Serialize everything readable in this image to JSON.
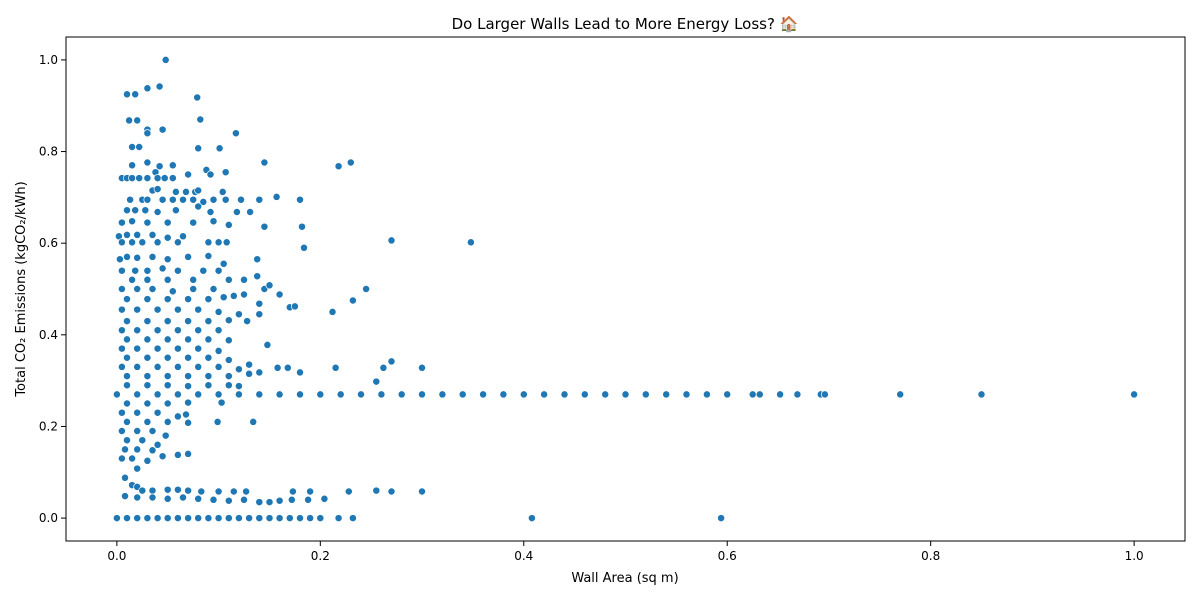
{
  "chart_data": {
    "type": "scatter",
    "title": "Do Larger Walls Lead to More Energy Loss? 🏠",
    "xlabel": "Wall Area (sq m)",
    "ylabel": "Total CO₂ Emissions (kgCO₂/kWh)",
    "xlim": [
      -0.05,
      1.05
    ],
    "ylim": [
      -0.05,
      1.05
    ],
    "x_ticks": [
      "0.0",
      "0.2",
      "0.4",
      "0.6",
      "0.8",
      "1.0"
    ],
    "y_ticks": [
      "0.0",
      "0.2",
      "0.4",
      "0.6",
      "0.8",
      "1.0"
    ],
    "grid": false,
    "marker_color": "#1f77b4",
    "marker_edge": "#ffffff",
    "points": [
      [
        0.048,
        1.0
      ],
      [
        0.01,
        0.925
      ],
      [
        0.018,
        0.925
      ],
      [
        0.03,
        0.938
      ],
      [
        0.042,
        0.942
      ],
      [
        0.079,
        0.918
      ],
      [
        0.012,
        0.868
      ],
      [
        0.02,
        0.868
      ],
      [
        0.082,
        0.87
      ],
      [
        0.03,
        0.848
      ],
      [
        0.045,
        0.848
      ],
      [
        0.03,
        0.84
      ],
      [
        0.117,
        0.84
      ],
      [
        0.015,
        0.81
      ],
      [
        0.022,
        0.81
      ],
      [
        0.08,
        0.807
      ],
      [
        0.101,
        0.807
      ],
      [
        0.03,
        0.776
      ],
      [
        0.055,
        0.77
      ],
      [
        0.015,
        0.77
      ],
      [
        0.042,
        0.768
      ],
      [
        0.145,
        0.776
      ],
      [
        0.218,
        0.768
      ],
      [
        0.23,
        0.776
      ],
      [
        0.088,
        0.76
      ],
      [
        0.092,
        0.75
      ],
      [
        0.107,
        0.755
      ],
      [
        0.07,
        0.75
      ],
      [
        0.038,
        0.755
      ],
      [
        0.005,
        0.742
      ],
      [
        0.01,
        0.742
      ],
      [
        0.015,
        0.742
      ],
      [
        0.022,
        0.742
      ],
      [
        0.03,
        0.742
      ],
      [
        0.04,
        0.742
      ],
      [
        0.047,
        0.742
      ],
      [
        0.055,
        0.742
      ],
      [
        0.035,
        0.715
      ],
      [
        0.04,
        0.718
      ],
      [
        0.058,
        0.712
      ],
      [
        0.068,
        0.712
      ],
      [
        0.077,
        0.712
      ],
      [
        0.08,
        0.715
      ],
      [
        0.104,
        0.712
      ],
      [
        0.013,
        0.695
      ],
      [
        0.025,
        0.695
      ],
      [
        0.03,
        0.695
      ],
      [
        0.045,
        0.695
      ],
      [
        0.055,
        0.695
      ],
      [
        0.065,
        0.695
      ],
      [
        0.075,
        0.695
      ],
      [
        0.085,
        0.69
      ],
      [
        0.095,
        0.695
      ],
      [
        0.107,
        0.695
      ],
      [
        0.122,
        0.695
      ],
      [
        0.14,
        0.695
      ],
      [
        0.18,
        0.695
      ],
      [
        0.157,
        0.701
      ],
      [
        0.01,
        0.672
      ],
      [
        0.018,
        0.672
      ],
      [
        0.028,
        0.672
      ],
      [
        0.04,
        0.668
      ],
      [
        0.058,
        0.672
      ],
      [
        0.08,
        0.68
      ],
      [
        0.092,
        0.668
      ],
      [
        0.118,
        0.668
      ],
      [
        0.131,
        0.668
      ],
      [
        0.005,
        0.645
      ],
      [
        0.015,
        0.648
      ],
      [
        0.03,
        0.645
      ],
      [
        0.05,
        0.645
      ],
      [
        0.075,
        0.645
      ],
      [
        0.095,
        0.648
      ],
      [
        0.11,
        0.64
      ],
      [
        0.145,
        0.636
      ],
      [
        0.182,
        0.636
      ],
      [
        0.002,
        0.615
      ],
      [
        0.01,
        0.618
      ],
      [
        0.02,
        0.618
      ],
      [
        0.035,
        0.618
      ],
      [
        0.05,
        0.612
      ],
      [
        0.065,
        0.615
      ],
      [
        0.005,
        0.602
      ],
      [
        0.015,
        0.602
      ],
      [
        0.025,
        0.602
      ],
      [
        0.04,
        0.602
      ],
      [
        0.06,
        0.602
      ],
      [
        0.09,
        0.602
      ],
      [
        0.1,
        0.602
      ],
      [
        0.108,
        0.602
      ],
      [
        0.184,
        0.59
      ],
      [
        0.27,
        0.606
      ],
      [
        0.348,
        0.602
      ],
      [
        0.003,
        0.565
      ],
      [
        0.01,
        0.57
      ],
      [
        0.02,
        0.568
      ],
      [
        0.035,
        0.57
      ],
      [
        0.05,
        0.565
      ],
      [
        0.07,
        0.57
      ],
      [
        0.09,
        0.572
      ],
      [
        0.105,
        0.555
      ],
      [
        0.138,
        0.565
      ],
      [
        0.005,
        0.54
      ],
      [
        0.018,
        0.54
      ],
      [
        0.03,
        0.54
      ],
      [
        0.045,
        0.545
      ],
      [
        0.06,
        0.54
      ],
      [
        0.085,
        0.54
      ],
      [
        0.1,
        0.54
      ],
      [
        0.125,
        0.52
      ],
      [
        0.138,
        0.528
      ],
      [
        0.015,
        0.52
      ],
      [
        0.03,
        0.52
      ],
      [
        0.05,
        0.52
      ],
      [
        0.075,
        0.52
      ],
      [
        0.11,
        0.52
      ],
      [
        0.145,
        0.5
      ],
      [
        0.15,
        0.508
      ],
      [
        0.16,
        0.488
      ],
      [
        0.232,
        0.475
      ],
      [
        0.245,
        0.5
      ],
      [
        0.005,
        0.5
      ],
      [
        0.02,
        0.5
      ],
      [
        0.035,
        0.5
      ],
      [
        0.055,
        0.495
      ],
      [
        0.075,
        0.5
      ],
      [
        0.095,
        0.5
      ],
      [
        0.115,
        0.485
      ],
      [
        0.125,
        0.488
      ],
      [
        0.01,
        0.478
      ],
      [
        0.03,
        0.478
      ],
      [
        0.05,
        0.478
      ],
      [
        0.07,
        0.478
      ],
      [
        0.09,
        0.478
      ],
      [
        0.105,
        0.482
      ],
      [
        0.17,
        0.46
      ],
      [
        0.175,
        0.462
      ],
      [
        0.212,
        0.45
      ],
      [
        0.14,
        0.468
      ],
      [
        0.005,
        0.455
      ],
      [
        0.02,
        0.455
      ],
      [
        0.04,
        0.455
      ],
      [
        0.06,
        0.455
      ],
      [
        0.08,
        0.455
      ],
      [
        0.1,
        0.45
      ],
      [
        0.12,
        0.445
      ],
      [
        0.14,
        0.445
      ],
      [
        0.01,
        0.43
      ],
      [
        0.03,
        0.43
      ],
      [
        0.05,
        0.43
      ],
      [
        0.07,
        0.43
      ],
      [
        0.09,
        0.43
      ],
      [
        0.11,
        0.432
      ],
      [
        0.128,
        0.43
      ],
      [
        0.005,
        0.41
      ],
      [
        0.02,
        0.41
      ],
      [
        0.04,
        0.41
      ],
      [
        0.06,
        0.41
      ],
      [
        0.08,
        0.41
      ],
      [
        0.1,
        0.41
      ],
      [
        0.01,
        0.39
      ],
      [
        0.03,
        0.39
      ],
      [
        0.05,
        0.39
      ],
      [
        0.07,
        0.39
      ],
      [
        0.09,
        0.39
      ],
      [
        0.11,
        0.388
      ],
      [
        0.148,
        0.378
      ],
      [
        0.005,
        0.37
      ],
      [
        0.02,
        0.37
      ],
      [
        0.04,
        0.37
      ],
      [
        0.06,
        0.37
      ],
      [
        0.08,
        0.37
      ],
      [
        0.1,
        0.365
      ],
      [
        0.01,
        0.35
      ],
      [
        0.03,
        0.35
      ],
      [
        0.05,
        0.35
      ],
      [
        0.07,
        0.35
      ],
      [
        0.09,
        0.35
      ],
      [
        0.11,
        0.345
      ],
      [
        0.13,
        0.335
      ],
      [
        0.27,
        0.342
      ],
      [
        0.262,
        0.328
      ],
      [
        0.3,
        0.328
      ],
      [
        0.215,
        0.328
      ],
      [
        0.158,
        0.328
      ],
      [
        0.168,
        0.328
      ],
      [
        0.005,
        0.33
      ],
      [
        0.02,
        0.33
      ],
      [
        0.04,
        0.33
      ],
      [
        0.06,
        0.33
      ],
      [
        0.08,
        0.33
      ],
      [
        0.1,
        0.33
      ],
      [
        0.12,
        0.325
      ],
      [
        0.01,
        0.31
      ],
      [
        0.03,
        0.31
      ],
      [
        0.05,
        0.31
      ],
      [
        0.07,
        0.31
      ],
      [
        0.09,
        0.31
      ],
      [
        0.11,
        0.31
      ],
      [
        0.13,
        0.315
      ],
      [
        0.14,
        0.318
      ],
      [
        0.18,
        0.318
      ],
      [
        0.255,
        0.298
      ],
      [
        0.01,
        0.29
      ],
      [
        0.03,
        0.29
      ],
      [
        0.05,
        0.29
      ],
      [
        0.07,
        0.288
      ],
      [
        0.09,
        0.29
      ],
      [
        0.11,
        0.29
      ],
      [
        0.12,
        0.288
      ],
      [
        0.0,
        0.27
      ],
      [
        0.02,
        0.27
      ],
      [
        0.04,
        0.27
      ],
      [
        0.06,
        0.27
      ],
      [
        0.08,
        0.27
      ],
      [
        0.1,
        0.27
      ],
      [
        0.12,
        0.27
      ],
      [
        0.14,
        0.27
      ],
      [
        0.16,
        0.27
      ],
      [
        0.18,
        0.27
      ],
      [
        0.2,
        0.27
      ],
      [
        0.22,
        0.27
      ],
      [
        0.24,
        0.27
      ],
      [
        0.26,
        0.27
      ],
      [
        0.28,
        0.27
      ],
      [
        0.3,
        0.27
      ],
      [
        0.32,
        0.27
      ],
      [
        0.34,
        0.27
      ],
      [
        0.36,
        0.27
      ],
      [
        0.38,
        0.27
      ],
      [
        0.4,
        0.27
      ],
      [
        0.42,
        0.27
      ],
      [
        0.44,
        0.27
      ],
      [
        0.46,
        0.27
      ],
      [
        0.48,
        0.27
      ],
      [
        0.5,
        0.27
      ],
      [
        0.52,
        0.27
      ],
      [
        0.54,
        0.27
      ],
      [
        0.56,
        0.27
      ],
      [
        0.58,
        0.27
      ],
      [
        0.6,
        0.27
      ],
      [
        0.625,
        0.27
      ],
      [
        0.632,
        0.27
      ],
      [
        0.652,
        0.27
      ],
      [
        0.669,
        0.27
      ],
      [
        0.692,
        0.27
      ],
      [
        0.696,
        0.27
      ],
      [
        0.77,
        0.27
      ],
      [
        0.85,
        0.27
      ],
      [
        1.0,
        0.27
      ],
      [
        0.01,
        0.25
      ],
      [
        0.03,
        0.25
      ],
      [
        0.05,
        0.25
      ],
      [
        0.07,
        0.252
      ],
      [
        0.103,
        0.252
      ],
      [
        0.005,
        0.23
      ],
      [
        0.02,
        0.23
      ],
      [
        0.04,
        0.23
      ],
      [
        0.06,
        0.222
      ],
      [
        0.068,
        0.226
      ],
      [
        0.01,
        0.21
      ],
      [
        0.03,
        0.21
      ],
      [
        0.05,
        0.21
      ],
      [
        0.07,
        0.208
      ],
      [
        0.099,
        0.21
      ],
      [
        0.134,
        0.21
      ],
      [
        0.005,
        0.19
      ],
      [
        0.02,
        0.19
      ],
      [
        0.035,
        0.19
      ],
      [
        0.048,
        0.18
      ],
      [
        0.01,
        0.17
      ],
      [
        0.025,
        0.17
      ],
      [
        0.04,
        0.16
      ],
      [
        0.008,
        0.15
      ],
      [
        0.02,
        0.15
      ],
      [
        0.035,
        0.148
      ],
      [
        0.005,
        0.13
      ],
      [
        0.015,
        0.13
      ],
      [
        0.03,
        0.125
      ],
      [
        0.045,
        0.135
      ],
      [
        0.06,
        0.138
      ],
      [
        0.07,
        0.14
      ],
      [
        0.02,
        0.108
      ],
      [
        0.008,
        0.088
      ],
      [
        0.015,
        0.072
      ],
      [
        0.02,
        0.068
      ],
      [
        0.025,
        0.06
      ],
      [
        0.035,
        0.06
      ],
      [
        0.05,
        0.062
      ],
      [
        0.06,
        0.062
      ],
      [
        0.07,
        0.06
      ],
      [
        0.083,
        0.058
      ],
      [
        0.1,
        0.058
      ],
      [
        0.115,
        0.058
      ],
      [
        0.127,
        0.058
      ],
      [
        0.173,
        0.058
      ],
      [
        0.19,
        0.058
      ],
      [
        0.228,
        0.058
      ],
      [
        0.255,
        0.06
      ],
      [
        0.27,
        0.058
      ],
      [
        0.3,
        0.058
      ],
      [
        0.008,
        0.048
      ],
      [
        0.02,
        0.045
      ],
      [
        0.035,
        0.045
      ],
      [
        0.05,
        0.042
      ],
      [
        0.065,
        0.045
      ],
      [
        0.08,
        0.042
      ],
      [
        0.095,
        0.04
      ],
      [
        0.11,
        0.038
      ],
      [
        0.125,
        0.04
      ],
      [
        0.14,
        0.035
      ],
      [
        0.15,
        0.035
      ],
      [
        0.16,
        0.038
      ],
      [
        0.172,
        0.04
      ],
      [
        0.188,
        0.04
      ],
      [
        0.204,
        0.042
      ],
      [
        0.0,
        0.0
      ],
      [
        0.01,
        0.0
      ],
      [
        0.02,
        0.0
      ],
      [
        0.03,
        0.0
      ],
      [
        0.04,
        0.0
      ],
      [
        0.05,
        0.0
      ],
      [
        0.06,
        0.0
      ],
      [
        0.07,
        0.0
      ],
      [
        0.08,
        0.0
      ],
      [
        0.09,
        0.0
      ],
      [
        0.1,
        0.0
      ],
      [
        0.11,
        0.0
      ],
      [
        0.12,
        0.0
      ],
      [
        0.13,
        0.0
      ],
      [
        0.14,
        0.0
      ],
      [
        0.15,
        0.0
      ],
      [
        0.16,
        0.0
      ],
      [
        0.17,
        0.0
      ],
      [
        0.18,
        0.0
      ],
      [
        0.19,
        0.0
      ],
      [
        0.2,
        0.0
      ],
      [
        0.218,
        0.0
      ],
      [
        0.232,
        0.0
      ],
      [
        0.408,
        0.0
      ],
      [
        0.594,
        0.0
      ]
    ]
  }
}
